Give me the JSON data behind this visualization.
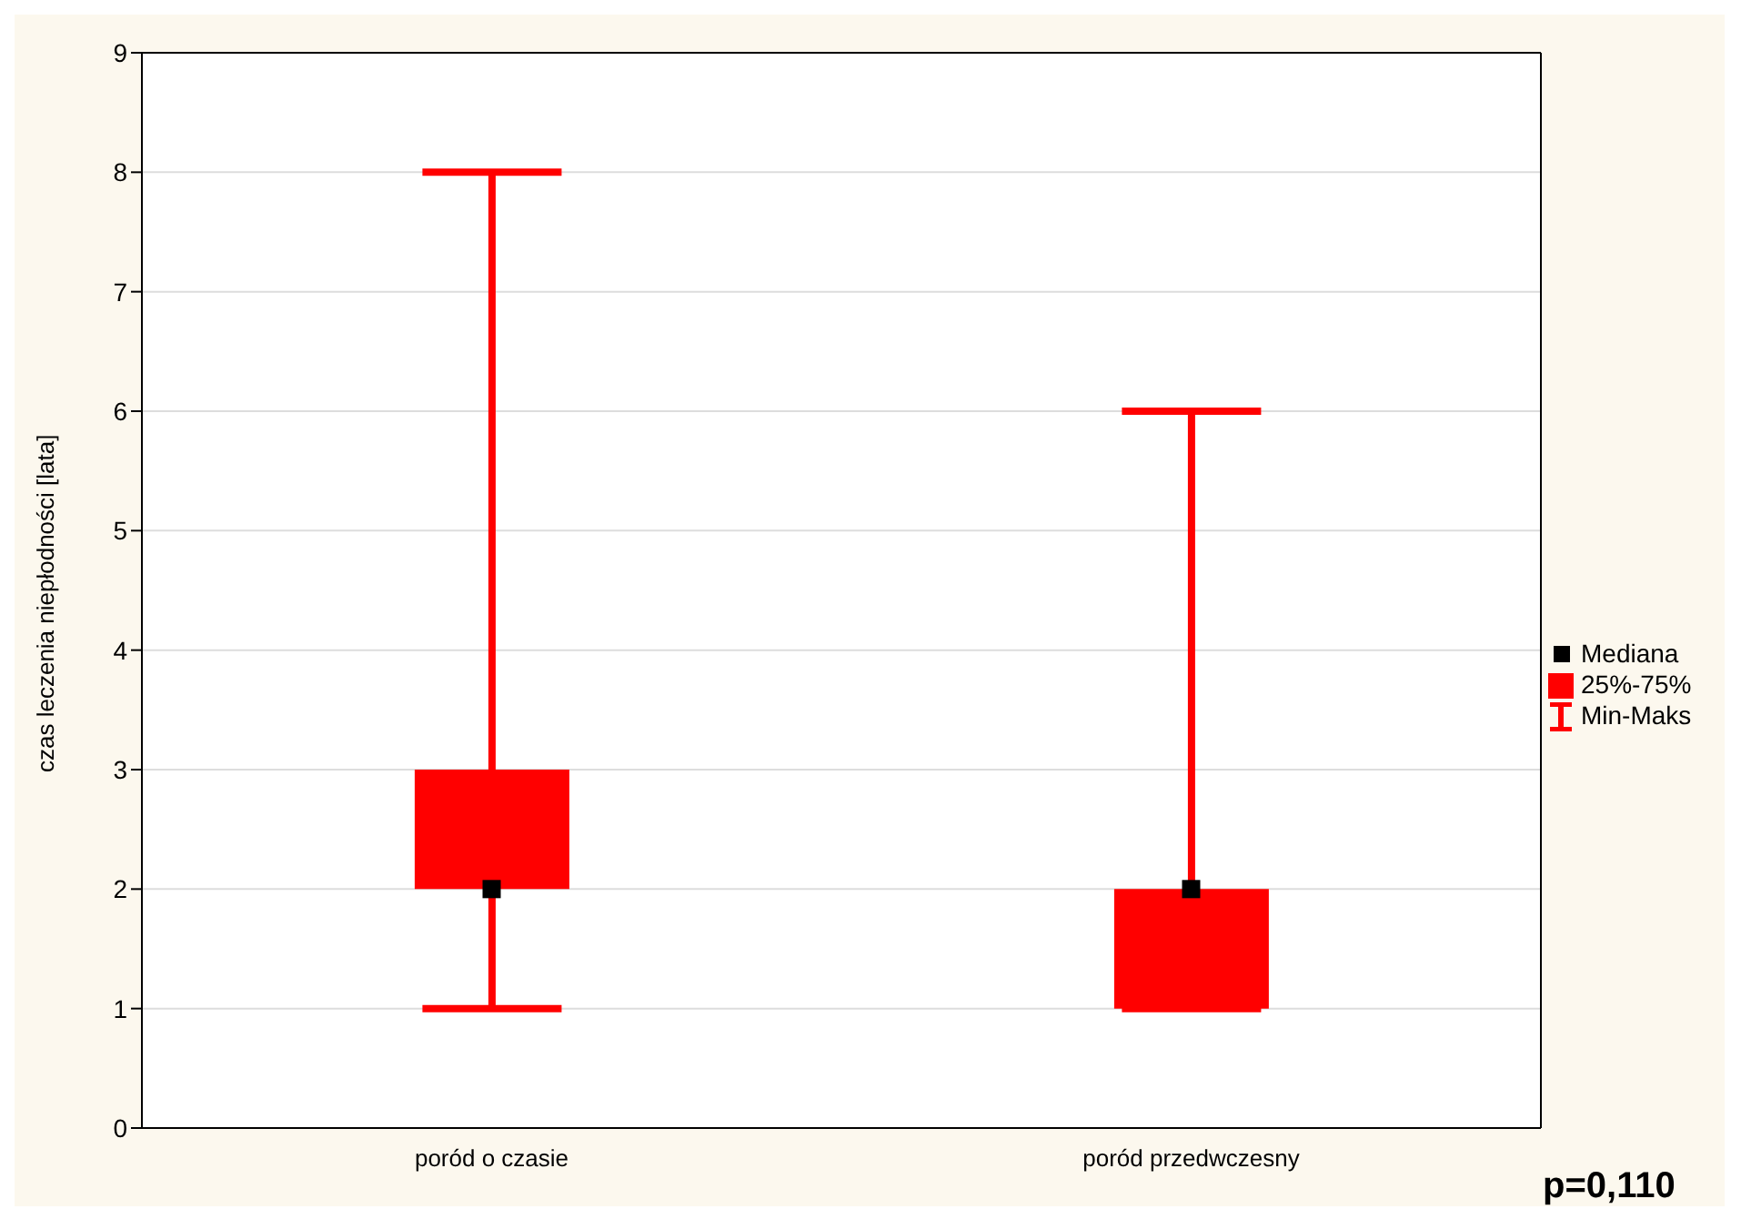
{
  "chart_data": {
    "type": "box",
    "ylabel": "czas leczenia niepłodności [lata]",
    "categories": [
      "poród o czasie",
      "poród przedwczesny"
    ],
    "series": [
      {
        "type": "scatter",
        "name": "Mediana",
        "color": "#000000",
        "marker": "square",
        "values": [
          2,
          2
        ]
      },
      {
        "type": "box",
        "name": "25%-75%",
        "color": "#ff0000",
        "boxes": [
          {
            "low": 1,
            "q1": 2,
            "q3": 3,
            "high": 8
          },
          {
            "low": 1,
            "q1": 1,
            "q3": 2,
            "high": 6
          }
        ]
      }
    ],
    "ylim": [
      0,
      9
    ],
    "yticks": [
      0,
      1,
      2,
      3,
      4,
      5,
      6,
      7,
      8,
      9
    ],
    "grid": "y",
    "legend": "right",
    "annotations": [
      "Min-Maks",
      "p=0,110"
    ]
  }
}
